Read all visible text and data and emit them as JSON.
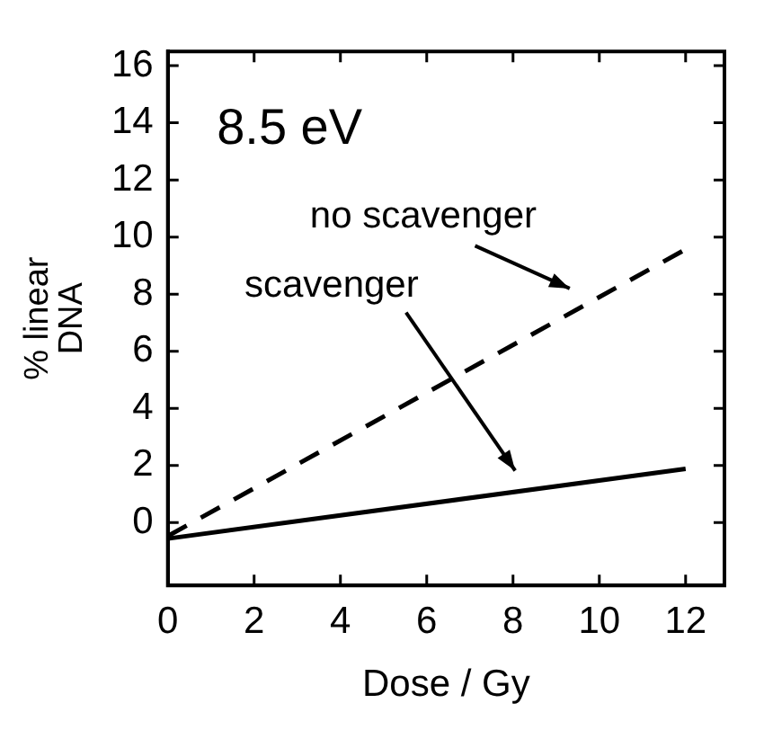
{
  "chart_data": {
    "type": "line",
    "xlabel": "Dose / Gy",
    "ylabel": "% linear DNA",
    "x": [
      0,
      12
    ],
    "series": [
      {
        "color": "#000000",
        "values": [
          -0.47,
          9.57
        ],
        "line_style": "dashed"
      },
      {
        "color": "#000000",
        "values": [
          -0.56,
          1.88
        ],
        "line_style": "solid"
      }
    ],
    "xlim": [
      0,
      12.9
    ],
    "xticks": [
      0,
      2,
      4,
      6,
      8,
      10,
      12
    ],
    "ylim": [
      -2.2,
      16.5
    ],
    "yticks": [
      0,
      2,
      4,
      6,
      8,
      10,
      12,
      14,
      16
    ],
    "grid": false,
    "legend": false,
    "marker": "none",
    "annotations": [
      "8.5 eV",
      "no scavenger",
      "scavenger"
    ]
  }
}
